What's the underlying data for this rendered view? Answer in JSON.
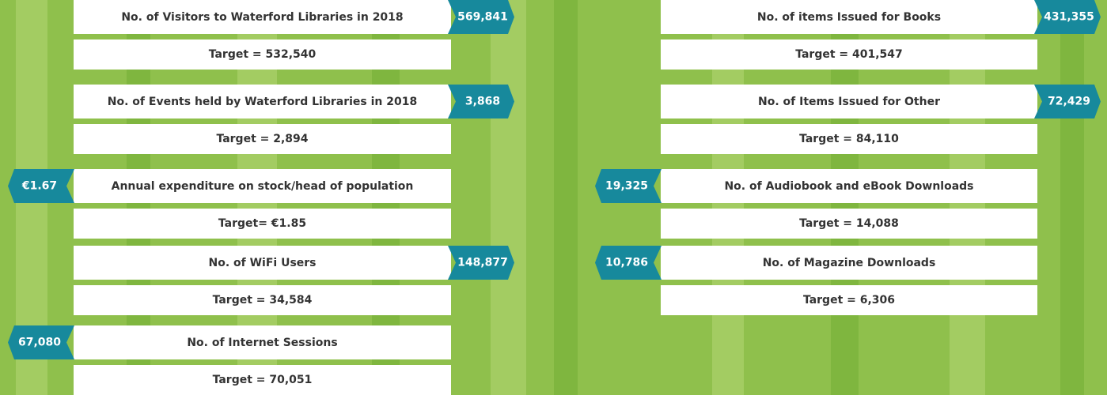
{
  "left_column": [
    {
      "label": "No. of Visitors to Waterford Libraries in 2018",
      "value": "569,841",
      "target": "Target = 532,540"
    },
    {
      "label": "No. of Events held by Waterford Libraries in 2018",
      "value": "3,868",
      "target": "Target = 2,894"
    },
    {
      "label": "Annual expenditure on stock/head of population",
      "value": "€1.67",
      "target": "Target= €1.85"
    },
    {
      "label": "No. of WiFi Users",
      "value": "148,877",
      "target": "Target = 34,584"
    },
    {
      "label": "No. of Internet Sessions",
      "value": "67,080",
      "target": "Target = 70,051"
    }
  ],
  "right_column": [
    {
      "label": "No. of items Issued for Books",
      "value": "431,355",
      "target": "Target = 401,547"
    },
    {
      "label": "No. of Items Issued for Other",
      "value": "72,429",
      "target": "Target = 84,110"
    },
    {
      "label": "No. of Audiobook and eBook Downloads",
      "value": "19,325",
      "target": "Target = 14,088"
    },
    {
      "label": "No. of Magazine Downloads",
      "value": "10,786",
      "target": "Target = 6,306"
    }
  ]
}
